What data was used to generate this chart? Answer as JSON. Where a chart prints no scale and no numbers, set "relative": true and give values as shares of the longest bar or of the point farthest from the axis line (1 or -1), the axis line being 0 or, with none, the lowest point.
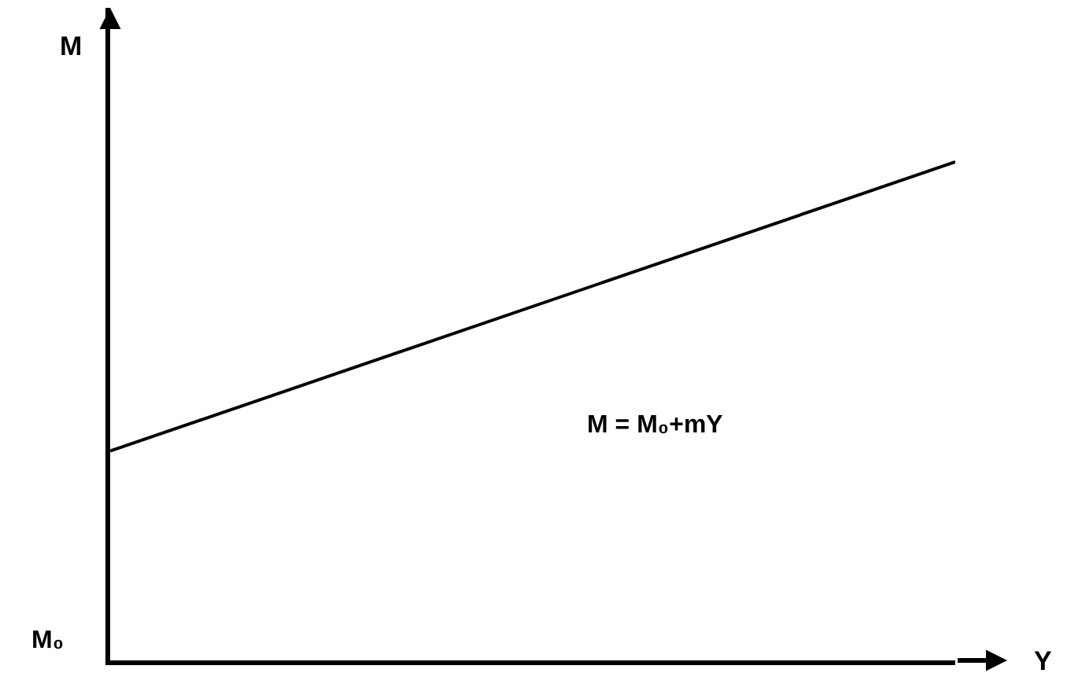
{
  "chart_data": {
    "type": "line",
    "xlabel": "Y",
    "ylabel": "M",
    "relative": true,
    "categories": [
      null,
      null
    ],
    "series": [
      {
        "color": "#000000",
        "values": [
          0.42,
          1
        ]
      }
    ],
    "line_style": "solid",
    "annotations": [
      "M = M₀+mY",
      "M₀"
    ]
  }
}
